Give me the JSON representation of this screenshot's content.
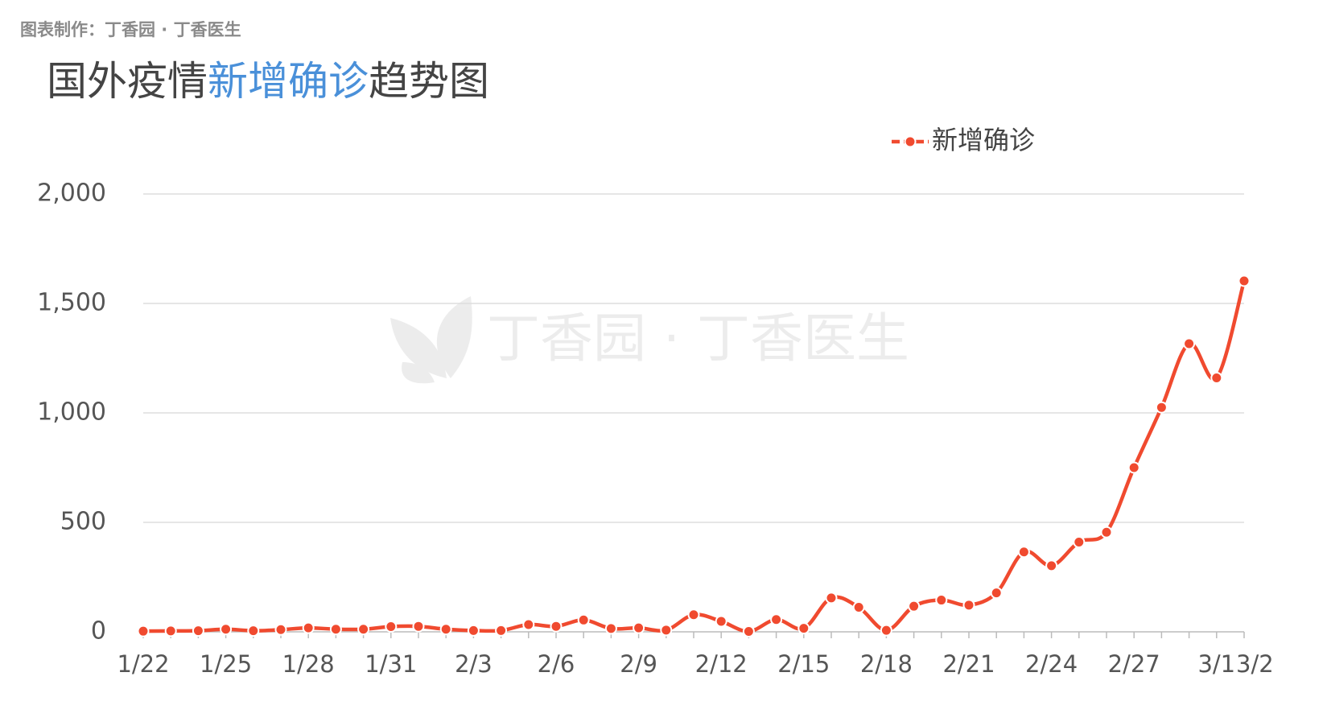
{
  "chart_data": {
    "type": "line",
    "source": "图表制作：丁香园 · 丁香医生",
    "title": [
      "国外疫情",
      "新增确诊",
      "趋势图"
    ],
    "watermark": "丁香园 · 丁香医生",
    "categories": [
      "1/22",
      null,
      null,
      "1/25",
      null,
      null,
      "1/28",
      null,
      null,
      "1/31",
      null,
      null,
      "2/3",
      null,
      null,
      "2/6",
      null,
      null,
      "2/9",
      null,
      null,
      "2/12",
      null,
      null,
      "2/15",
      null,
      null,
      "2/18",
      null,
      null,
      "2/21",
      null,
      null,
      "2/24",
      null,
      null,
      "2/27",
      null,
      null,
      "3/1",
      "3/2"
    ],
    "series": [
      {
        "name": "新增确诊",
        "color": "#f04a2f",
        "values": [
          3,
          4,
          5,
          12,
          5,
          10,
          18,
          12,
          12,
          24,
          25,
          12,
          6,
          6,
          33,
          25,
          54,
          15,
          18,
          8,
          78,
          48,
          2,
          56,
          16,
          155,
          112,
          7,
          117,
          145,
          122,
          178,
          365,
          302,
          410,
          455,
          750,
          1025,
          1316,
          1160,
          1603
        ]
      }
    ],
    "ylim": [
      0,
      2000
    ],
    "yticks": [
      0,
      500,
      {
        "value": 1000,
        "label": "1,000"
      },
      {
        "value": 1500,
        "label": "1,500"
      },
      {
        "value": 2000,
        "label": "2,000"
      }
    ],
    "grid": true,
    "legend": "top-right"
  }
}
